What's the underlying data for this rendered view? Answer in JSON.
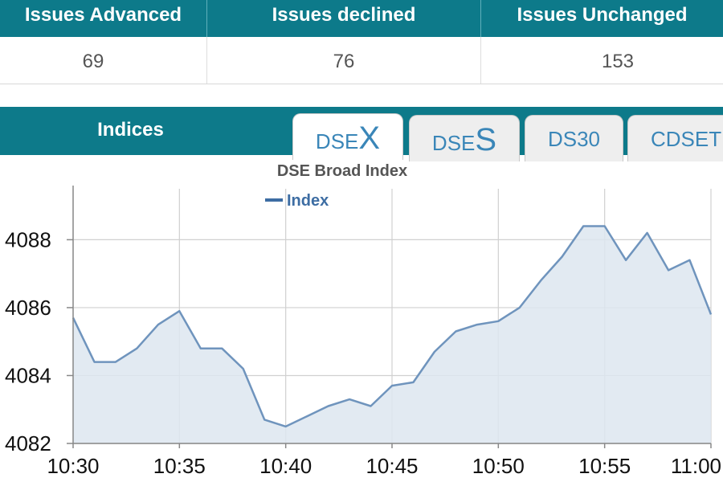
{
  "stats": {
    "columns": [
      {
        "header": "Issues Advanced",
        "value": "69"
      },
      {
        "header": "Issues declined",
        "value": "76"
      },
      {
        "header": "Issues Unchanged",
        "value": "153"
      }
    ]
  },
  "indices": {
    "title": "Indices",
    "tabs": [
      {
        "small": "DSE",
        "large": "X",
        "active": true
      },
      {
        "small": "DSE",
        "large": "S",
        "active": false
      },
      {
        "plain": "DS30",
        "active": false
      },
      {
        "plain": "CDSET",
        "active": false
      }
    ]
  },
  "colors": {
    "header_teal": "#0d7a8a",
    "line": "#6f94bd",
    "fill": "#dde6f0",
    "legend_swatch": "#3d6da3",
    "tab_text": "#3a86b8"
  },
  "chart_data": {
    "type": "area",
    "title": "DSE Broad Index",
    "legend": {
      "label": "Index",
      "position": "top-left"
    },
    "x_tick_labels": [
      "10:30",
      "10:35",
      "10:40",
      "10:45",
      "10:50",
      "10:55",
      "11:00"
    ],
    "y_tick_labels": [
      "4082",
      "4084",
      "4086",
      "4088"
    ],
    "ylim": [
      4082,
      4089.5
    ],
    "xlim": [
      "10:30",
      "11:00"
    ],
    "grid": true,
    "series": [
      {
        "name": "Index",
        "x": [
          "10:30",
          "10:31",
          "10:32",
          "10:33",
          "10:34",
          "10:35",
          "10:36",
          "10:37",
          "10:38",
          "10:39",
          "10:40",
          "10:41",
          "10:42",
          "10:43",
          "10:44",
          "10:45",
          "10:46",
          "10:47",
          "10:48",
          "10:49",
          "10:50",
          "10:51",
          "10:52",
          "10:53",
          "10:54",
          "10:55",
          "10:56",
          "10:57",
          "10:58",
          "10:59",
          "11:00"
        ],
        "values": [
          4085.7,
          4084.4,
          4084.4,
          4084.8,
          4085.5,
          4085.9,
          4084.8,
          4084.8,
          4084.2,
          4082.7,
          4082.5,
          4082.8,
          4083.1,
          4083.3,
          4083.1,
          4083.7,
          4083.8,
          4084.7,
          4085.3,
          4085.5,
          4085.6,
          4086.0,
          4086.8,
          4087.5,
          4088.4,
          4088.4,
          4087.4,
          4088.2,
          4087.1,
          4087.4,
          4085.8
        ]
      }
    ]
  }
}
